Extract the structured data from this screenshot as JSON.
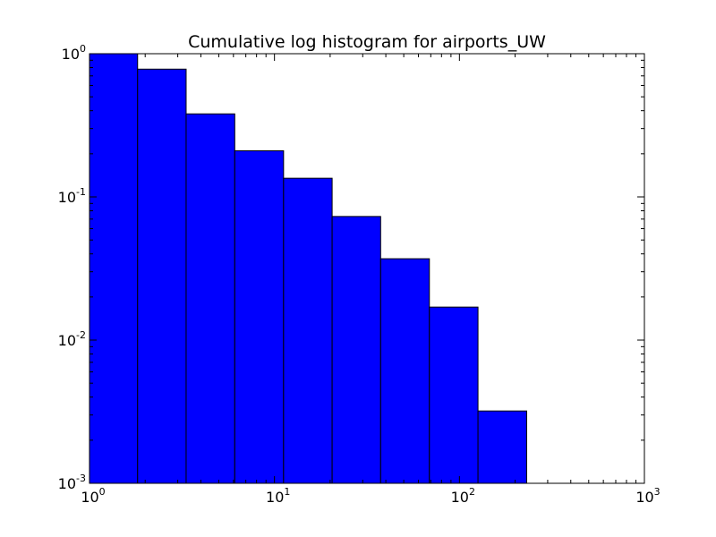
{
  "chart_data": {
    "type": "bar",
    "title": "Cumulative log histogram for airports_UW",
    "xlabel": "",
    "ylabel": "",
    "x_scale": "log",
    "y_scale": "log",
    "xlim": [
      1,
      1000
    ],
    "ylim": [
      0.001,
      1
    ],
    "grid": false,
    "bar_color": "#0000ff",
    "edge_color": "#000000",
    "bins": [
      {
        "x_start": 1.0,
        "x_end": 1.82,
        "value": 1.0
      },
      {
        "x_start": 1.82,
        "x_end": 3.33,
        "value": 0.78
      },
      {
        "x_start": 3.33,
        "x_end": 6.1,
        "value": 0.38
      },
      {
        "x_start": 6.1,
        "x_end": 11.2,
        "value": 0.21
      },
      {
        "x_start": 11.2,
        "x_end": 20.5,
        "value": 0.135
      },
      {
        "x_start": 20.5,
        "x_end": 37.5,
        "value": 0.073
      },
      {
        "x_start": 37.5,
        "x_end": 68.8,
        "value": 0.037
      },
      {
        "x_start": 68.8,
        "x_end": 126,
        "value": 0.017
      },
      {
        "x_start": 126,
        "x_end": 231,
        "value": 0.0032
      }
    ],
    "x_ticks": [
      {
        "value": 1,
        "base": "10",
        "exp": "0"
      },
      {
        "value": 10,
        "base": "10",
        "exp": "1"
      },
      {
        "value": 100,
        "base": "10",
        "exp": "2"
      },
      {
        "value": 1000,
        "base": "10",
        "exp": "3"
      }
    ],
    "y_ticks": [
      {
        "value": 1,
        "base": "10",
        "exp": "0"
      },
      {
        "value": 0.1,
        "base": "10",
        "exp": "-1"
      },
      {
        "value": 0.01,
        "base": "10",
        "exp": "-2"
      },
      {
        "value": 0.001,
        "base": "10",
        "exp": "-3"
      }
    ]
  }
}
